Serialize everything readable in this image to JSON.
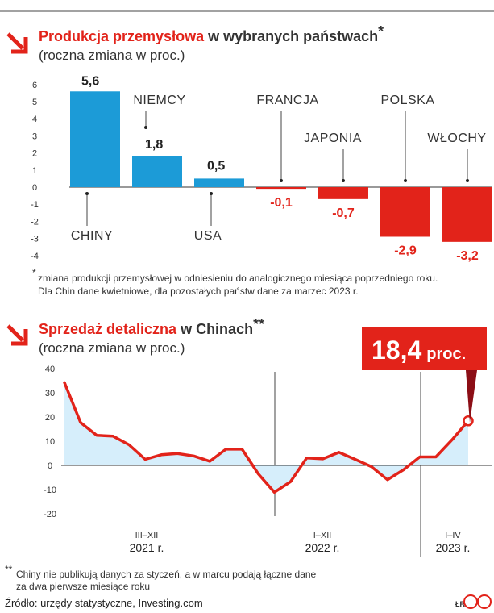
{
  "chart1": {
    "title_red": "Produkcja przemysłowa",
    "title_rest": " w wybranych państwach",
    "title_mark": "*",
    "subtitle": "(roczna zmiana w proc.)",
    "footnote_mark": "*",
    "footnote_lines": [
      "zmiana produkcji przemysłowej w odniesieniu do analogicznego miesiąca poprzedniego roku.",
      "Dla Chin dane kwietniowe, dla pozostałych państw dane za marzec 2023 r."
    ]
  },
  "chart2": {
    "title_red": "Sprzedaż detaliczna",
    "title_rest": " w Chinach",
    "title_mark": "**",
    "subtitle": "(roczna zmiana w proc.)",
    "callout_value": "18,4",
    "callout_unit": "proc.",
    "footnote_mark": "**",
    "footnote_lines": [
      "Chiny nie publikują danych za styczeń, a w marcu podają łączne dane",
      "za dwa pierwsze miesiące roku"
    ]
  },
  "source": "Źródło: urzędy statystyczne, Investing.com",
  "logo_text": "ŁR",
  "colors": {
    "red": "#e2231a",
    "blue": "#1c9bd7",
    "light_blue": "#d6eefb",
    "dark_red": "#8c0e16"
  },
  "chart_data": [
    {
      "type": "bar",
      "categories": [
        "CHINY",
        "NIEMCY",
        "USA",
        "FRANCJA",
        "JAPONIA",
        "POLSKA",
        "WŁOCHY"
      ],
      "values": [
        5.6,
        1.8,
        0.5,
        -0.1,
        -0.7,
        -2.9,
        -3.2
      ],
      "value_labels": [
        "5,6",
        "1,8",
        "0,5",
        "-0,1",
        "-0,7",
        "-2,9",
        "-3,2"
      ],
      "title": "Produkcja przemysłowa w wybranych państwach*",
      "ylabel": "(roczna zmiana w proc.)",
      "ylim": [
        -4,
        6
      ],
      "yticks": [
        "6",
        "5",
        "4",
        "3",
        "2",
        "1",
        "0",
        "-1",
        "-2",
        "-3",
        "-4"
      ],
      "grid": false
    },
    {
      "type": "line",
      "title": "Sprzedaż detaliczna w Chinach**",
      "ylabel": "(roczna zmiana w proc.)",
      "ylim": [
        -20,
        40
      ],
      "yticks": [
        "40",
        "30",
        "20",
        "10",
        "0",
        "-10",
        "-20"
      ],
      "x_period_labels": [
        {
          "months": "III–XII",
          "year": "2021 r."
        },
        {
          "months": "I–XII",
          "year": "2022 r."
        },
        {
          "months": "I–IV",
          "year": "2023 r."
        }
      ],
      "series": [
        {
          "values": [
            34.2,
            17.7,
            12.4,
            12.1,
            8.5,
            2.5,
            4.4,
            4.9,
            3.9,
            1.7,
            6.7,
            6.7,
            -3.5,
            -11.1,
            -6.7,
            3.1,
            2.7,
            5.4,
            2.5,
            -0.5,
            -5.9,
            -1.8,
            3.5,
            3.5,
            10.6,
            18.4
          ]
        }
      ],
      "highlight": {
        "index": 25,
        "value": 18.4
      },
      "grid": false
    }
  ]
}
